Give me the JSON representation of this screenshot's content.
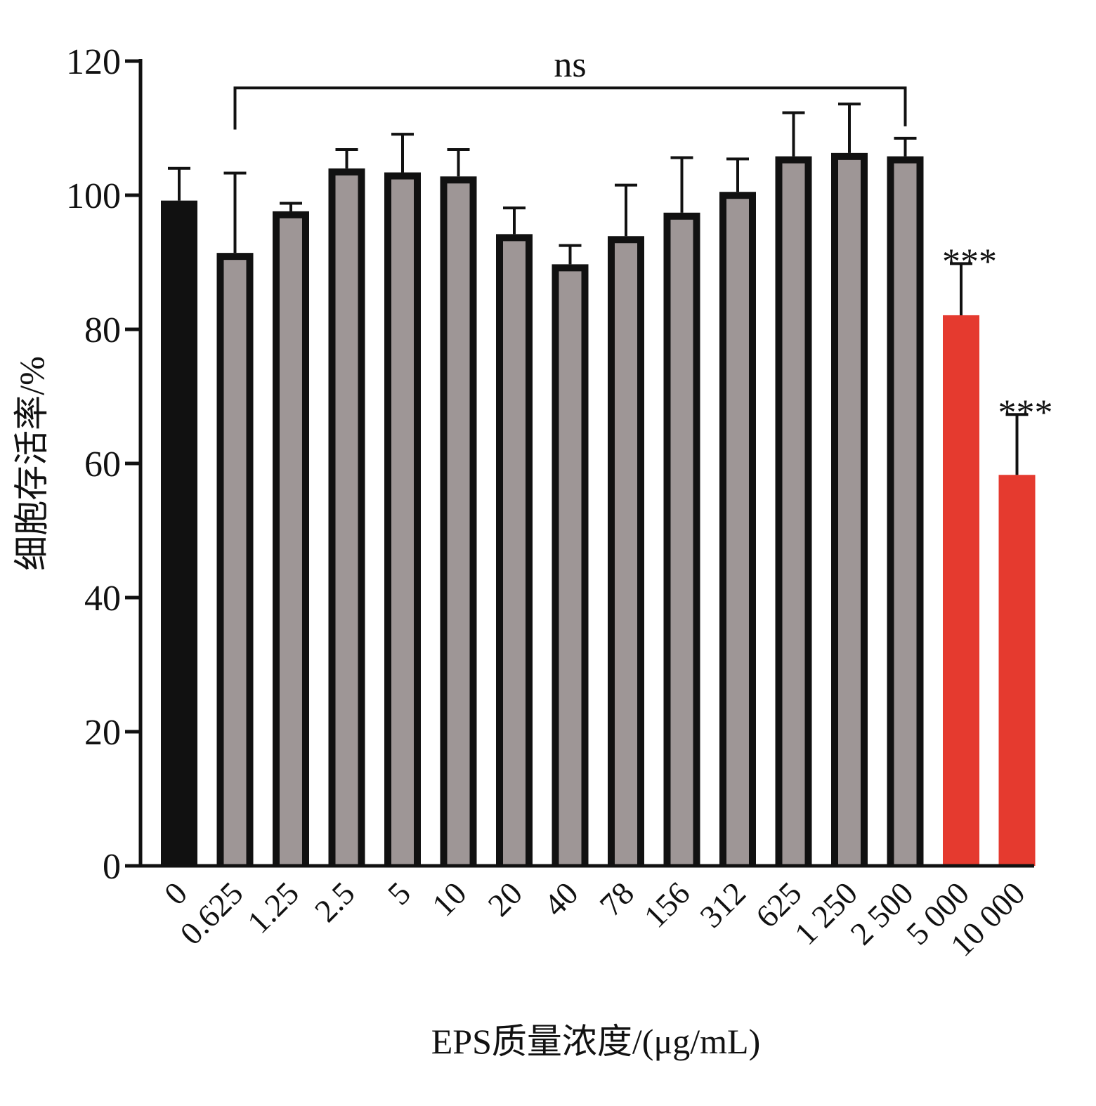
{
  "chart_data": {
    "type": "bar",
    "xlabel": "EPS质量浓度/(μg/mL)",
    "ylabel": "细胞存活率/%",
    "ylim": [
      0,
      120
    ],
    "yticks": [
      0,
      20,
      40,
      60,
      80,
      100,
      120
    ],
    "categories": [
      "0",
      "0.625",
      "1.25",
      "2.5",
      "5",
      "10",
      "20",
      "40",
      "78",
      "156",
      "312",
      "625",
      "1 250",
      "2 500",
      "5 000",
      "10 000"
    ],
    "values": [
      99.2,
      91.4,
      97.6,
      104.0,
      103.4,
      102.8,
      94.2,
      89.7,
      93.9,
      97.4,
      100.5,
      105.8,
      106.3,
      105.8,
      82.1,
      58.3
    ],
    "error_upper": [
      104.0,
      103.3,
      98.8,
      106.8,
      109.1,
      106.8,
      98.1,
      92.5,
      101.5,
      105.6,
      105.4,
      112.3,
      113.6,
      108.5,
      89.8,
      67.3
    ],
    "bar_styles": [
      "control",
      "treated",
      "treated",
      "treated",
      "treated",
      "treated",
      "treated",
      "treated",
      "treated",
      "treated",
      "treated",
      "treated",
      "treated",
      "treated",
      "significant",
      "significant"
    ],
    "colors": {
      "control": "#111111",
      "treated_fill": "#9e9696",
      "treated_edge": "#111111",
      "significant": "#e53a2f",
      "axis": "#111111"
    },
    "annotations": [
      {
        "text": "ns",
        "type": "bracket",
        "from_index": 1,
        "to_index": 13,
        "level": 116
      },
      {
        "text": "***",
        "type": "star",
        "index": 14
      },
      {
        "text": "***",
        "type": "star",
        "index": 15
      }
    ],
    "grid": false,
    "legend": "none"
  }
}
